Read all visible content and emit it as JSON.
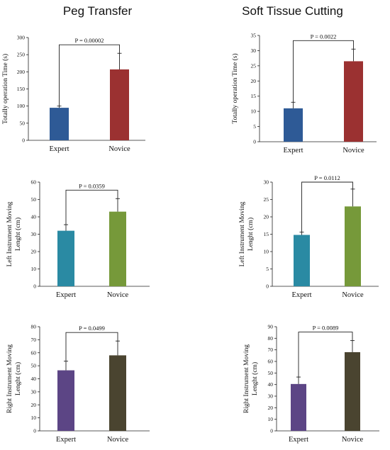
{
  "columns": [
    "Peg Transfer",
    "Soft Tissue Cutting"
  ],
  "colors": {
    "blue": "#2e5a96",
    "red": "#9b3131",
    "teal": "#2a8aa3",
    "green": "#76993a",
    "purple": "#5c4585",
    "olive": "#4a4430"
  },
  "chart_data": [
    {
      "type": "bar",
      "task": "Peg Transfer",
      "categories": [
        "Expert",
        "Novice"
      ],
      "values": [
        95,
        207
      ],
      "errors": [
        5,
        47
      ],
      "ylabel": "Totally operation Time (s)",
      "ylim": [
        0,
        300
      ],
      "yticks": [
        0,
        50,
        100,
        150,
        200,
        250,
        300
      ],
      "annotation": "P = 0.00002",
      "colors": [
        "#2e5a96",
        "#9b3131"
      ]
    },
    {
      "type": "bar",
      "task": "Soft Tissue Cutting",
      "categories": [
        "Expert",
        "Novice"
      ],
      "values": [
        11,
        26.5
      ],
      "errors": [
        2,
        4
      ],
      "ylabel": "Totally operation Time (s)",
      "ylim": [
        0,
        35
      ],
      "yticks": [
        0,
        5,
        10,
        15,
        20,
        25,
        30,
        35
      ],
      "annotation": "P = 0.0022",
      "colors": [
        "#2e5a96",
        "#9b3131"
      ]
    },
    {
      "type": "bar",
      "task": "Peg Transfer",
      "categories": [
        "Expert",
        "Novice"
      ],
      "values": [
        32,
        43
      ],
      "errors": [
        3.5,
        7.5
      ],
      "ylabel": "Left Instrument Moving Lenght (cm)",
      "ylim": [
        0,
        60
      ],
      "yticks": [
        0,
        10,
        20,
        30,
        40,
        50,
        60
      ],
      "annotation": "P = 0.0359",
      "colors": [
        "#2a8aa3",
        "#76993a"
      ]
    },
    {
      "type": "bar",
      "task": "Soft Tissue Cutting",
      "categories": [
        "Expert",
        "Novice"
      ],
      "values": [
        14.8,
        23
      ],
      "errors": [
        0.8,
        5
      ],
      "ylabel": "Left Instrument Moving Lenght (cm)",
      "ylim": [
        0,
        30
      ],
      "yticks": [
        0,
        5,
        10,
        15,
        20,
        25,
        30
      ],
      "annotation": "P = 0.0112",
      "colors": [
        "#2a8aa3",
        "#76993a"
      ]
    },
    {
      "type": "bar",
      "task": "Peg Transfer",
      "categories": [
        "Expert",
        "Novice"
      ],
      "values": [
        46.5,
        58
      ],
      "errors": [
        7,
        11
      ],
      "ylabel": "Right Instrument Moving Lenght (cm)",
      "ylim": [
        0,
        80
      ],
      "yticks": [
        0,
        10,
        20,
        30,
        40,
        50,
        60,
        70,
        80
      ],
      "annotation": "P = 0.0499",
      "colors": [
        "#5c4585",
        "#4a4430"
      ]
    },
    {
      "type": "bar",
      "task": "Soft Tissue Cutting",
      "categories": [
        "Expert",
        "Novice"
      ],
      "values": [
        40.5,
        68
      ],
      "errors": [
        6,
        10
      ],
      "ylabel": "Right Instrument Moving Lenght (cm)",
      "ylim": [
        0,
        90
      ],
      "yticks": [
        0,
        10,
        20,
        30,
        40,
        50,
        60,
        70,
        80,
        90
      ],
      "annotation": "P = 0.0089",
      "colors": [
        "#5c4585",
        "#4a4430"
      ]
    }
  ]
}
